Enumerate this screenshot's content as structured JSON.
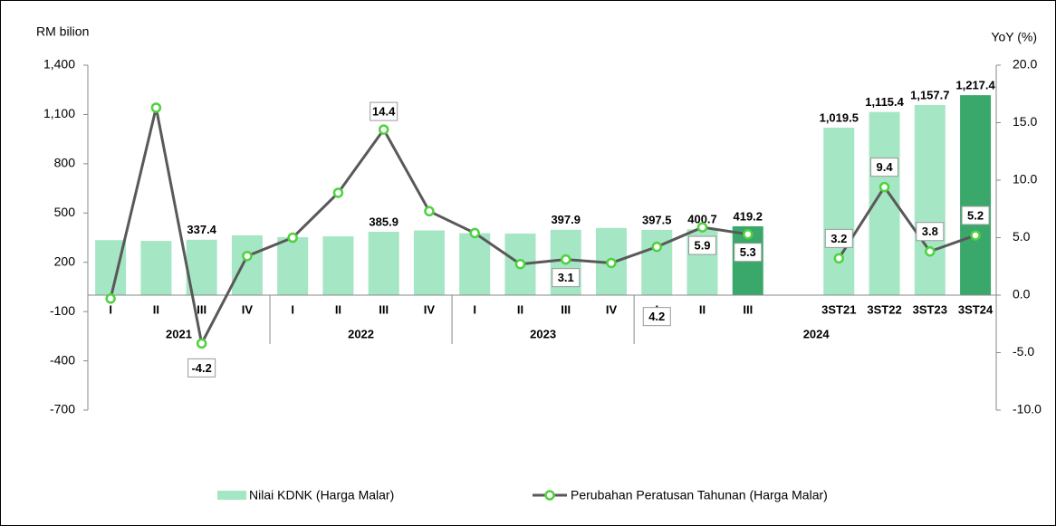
{
  "chart_data": {
    "type": "combo",
    "y_label": "RM bilion",
    "y2_label": "YoY (%)",
    "categories": [
      "I",
      "II",
      "III",
      "IV",
      "I",
      "II",
      "III",
      "IV",
      "I",
      "II",
      "III",
      "IV",
      "I",
      "II",
      "III",
      null,
      "3ST21",
      "3ST22",
      "3ST23",
      "3ST24"
    ],
    "groups": [
      "2021",
      "2022",
      "2023",
      "2024"
    ],
    "series": [
      {
        "name": "Nilai KDNK (Harga Malar)",
        "type": "bar",
        "color": "#a5e6c4",
        "colors": [
          "#a5e6c4",
          "#a5e6c4",
          "#a5e6c4",
          "#a5e6c4",
          "#a5e6c4",
          "#a5e6c4",
          "#a5e6c4",
          "#a5e6c4",
          "#a5e6c4",
          "#a5e6c4",
          "#a5e6c4",
          "#a5e6c4",
          "#a5e6c4",
          "#a5e6c4",
          "#3aa86a",
          null,
          "#a5e6c4",
          "#a5e6c4",
          "#a5e6c4",
          "#3aa86a"
        ],
        "values": [
          335,
          330,
          337.4,
          364,
          353,
          358,
          385.9,
          394,
          377,
          375,
          397.9,
          409,
          397.5,
          400.7,
          419.2,
          null,
          1019.5,
          1115.4,
          1157.7,
          1217.4
        ],
        "value_labels": [
          null,
          null,
          "337.4",
          null,
          null,
          null,
          "385.9",
          null,
          null,
          null,
          "397.9",
          null,
          "397.5",
          "400.7",
          "419.2",
          null,
          "1,019.5",
          "1,115.4",
          "1,157.7",
          "1,217.4"
        ]
      },
      {
        "name": "Perubahan Peratusan Tahunan (Harga Malar)",
        "type": "line",
        "axis": "y2",
        "color": "#595959",
        "marker_color": "#4fd23f",
        "values": [
          -0.3,
          16.3,
          -4.2,
          3.4,
          5.0,
          8.9,
          14.4,
          7.3,
          5.4,
          2.7,
          3.1,
          2.8,
          4.2,
          5.9,
          5.3,
          null,
          3.2,
          9.4,
          3.8,
          5.2
        ],
        "value_labels": [
          null,
          null,
          "-4.2",
          null,
          null,
          null,
          "14.4",
          null,
          null,
          null,
          "3.1",
          null,
          "4.2",
          "5.9",
          "5.3",
          null,
          "3.2",
          "9.4",
          "3.8",
          "5.2"
        ]
      }
    ],
    "ylim": [
      -700,
      1400
    ],
    "yticks": [
      -700,
      -400,
      -100,
      200,
      500,
      800,
      {
        "value": 1100,
        "label": "1,100"
      },
      {
        "value": 1400,
        "label": "1,400"
      }
    ],
    "y2lim": [
      -10,
      20
    ],
    "y2ticks": [
      {
        "value": -10,
        "label": "-10.0"
      },
      {
        "value": -5,
        "label": "-5.0"
      },
      {
        "value": 0,
        "label": "0.0"
      },
      {
        "value": 5,
        "label": "5.0"
      },
      {
        "value": 10,
        "label": "10.0"
      },
      {
        "value": 15,
        "label": "15.0"
      },
      {
        "value": 20,
        "label": "20.0"
      }
    ]
  }
}
